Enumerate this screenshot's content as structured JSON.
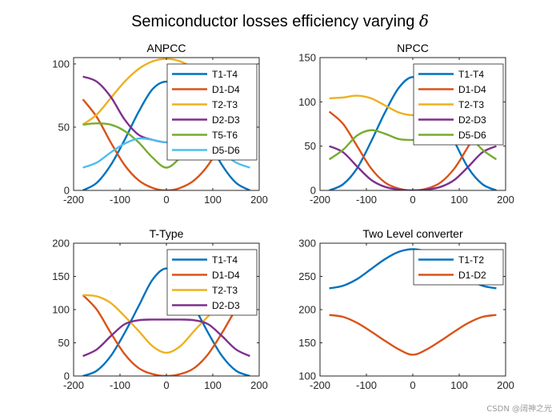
{
  "figure": {
    "title": "Semiconductor losses efficiency varying ",
    "title_symbol": "δ",
    "watermark": "CSDN @阔神之光"
  },
  "chart_data": [
    {
      "type": "line",
      "title": "ANPCC",
      "xlim": [
        -200,
        200
      ],
      "ylim": [
        0,
        105
      ],
      "xticks": [
        "-200",
        "-100",
        "0",
        "100",
        "200"
      ],
      "yticks": [
        "0",
        "50",
        "100"
      ],
      "yticks_values": [
        0,
        50,
        100
      ],
      "legend_position": "top-right",
      "x": [
        -180,
        -150,
        -120,
        -90,
        -60,
        -30,
        0,
        30,
        60,
        90,
        120,
        150,
        180
      ],
      "series": [
        {
          "name": "T1-T4",
          "color": "#0072BD",
          "values": [
            0,
            6,
            20,
            40,
            62,
            80,
            86,
            80,
            62,
            40,
            20,
            6,
            0
          ]
        },
        {
          "name": "D1-D4",
          "color": "#D95319",
          "values": [
            72,
            58,
            38,
            20,
            8,
            2,
            0,
            2,
            8,
            20,
            38,
            58,
            72
          ]
        },
        {
          "name": "T2-T3",
          "color": "#EDB120",
          "values": [
            52,
            60,
            73,
            86,
            96,
            102,
            104,
            102,
            96,
            86,
            73,
            60,
            52
          ]
        },
        {
          "name": "D2-D3",
          "color": "#7E2F8E",
          "values": [
            90,
            86,
            74,
            56,
            44,
            40,
            38,
            40,
            44,
            56,
            74,
            86,
            90
          ]
        },
        {
          "name": "T5-T6",
          "color": "#77AC30",
          "values": [
            52,
            53,
            52,
            47,
            38,
            26,
            18,
            26,
            38,
            47,
            52,
            53,
            52
          ]
        },
        {
          "name": "D5-D6",
          "color": "#4DBEEE",
          "values": [
            18,
            22,
            30,
            37,
            41,
            40,
            38,
            40,
            41,
            37,
            30,
            22,
            18
          ]
        }
      ]
    },
    {
      "type": "line",
      "title": "NPCC",
      "xlim": [
        -200,
        200
      ],
      "ylim": [
        0,
        150
      ],
      "xticks": [
        "-200",
        "-100",
        "0",
        "100",
        "200"
      ],
      "yticks": [
        "0",
        "50",
        "100",
        "150"
      ],
      "yticks_values": [
        0,
        50,
        100,
        150
      ],
      "legend_position": "top-right",
      "x": [
        -180,
        -150,
        -120,
        -90,
        -60,
        -30,
        0,
        30,
        60,
        90,
        120,
        150,
        180
      ],
      "series": [
        {
          "name": "T1-T4",
          "color": "#0072BD",
          "values": [
            0,
            7,
            25,
            55,
            88,
            116,
            128,
            116,
            88,
            55,
            25,
            7,
            0
          ]
        },
        {
          "name": "D1-D4",
          "color": "#D95319",
          "values": [
            89,
            75,
            50,
            25,
            9,
            2,
            0,
            2,
            9,
            25,
            50,
            75,
            89
          ]
        },
        {
          "name": "T2-T3",
          "color": "#EDB120",
          "values": [
            104,
            105,
            107,
            104,
            96,
            88,
            85,
            88,
            96,
            104,
            107,
            105,
            104
          ]
        },
        {
          "name": "D2-D3",
          "color": "#7E2F8E",
          "values": [
            50,
            43,
            27,
            12,
            4,
            1,
            0,
            1,
            4,
            12,
            27,
            43,
            50
          ]
        },
        {
          "name": "D5-D6",
          "color": "#77AC30",
          "values": [
            35,
            46,
            62,
            68,
            64,
            58,
            57,
            58,
            64,
            68,
            62,
            46,
            35
          ]
        }
      ]
    },
    {
      "type": "line",
      "title": "T-Type",
      "xlim": [
        -200,
        200
      ],
      "ylim": [
        0,
        200
      ],
      "xticks": [
        "-200",
        "-100",
        "0",
        "100",
        "200"
      ],
      "yticks": [
        "0",
        "50",
        "100",
        "150",
        "200"
      ],
      "yticks_values": [
        0,
        50,
        100,
        150,
        200
      ],
      "legend_position": "top-right",
      "x": [
        -180,
        -150,
        -120,
        -90,
        -60,
        -30,
        0,
        30,
        60,
        90,
        120,
        150,
        180
      ],
      "series": [
        {
          "name": "T1-T4",
          "color": "#0072BD",
          "values": [
            0,
            8,
            30,
            65,
            105,
            145,
            162,
            145,
            105,
            65,
            30,
            8,
            0
          ]
        },
        {
          "name": "D1-D4",
          "color": "#D95319",
          "values": [
            122,
            100,
            65,
            33,
            12,
            3,
            0,
            3,
            12,
            33,
            65,
            100,
            122
          ]
        },
        {
          "name": "T2-T3",
          "color": "#EDB120",
          "values": [
            122,
            120,
            110,
            90,
            68,
            45,
            35,
            45,
            68,
            90,
            110,
            120,
            122
          ]
        },
        {
          "name": "D2-D3",
          "color": "#7E2F8E",
          "values": [
            30,
            40,
            60,
            78,
            84,
            85,
            85,
            85,
            84,
            78,
            60,
            40,
            30
          ]
        }
      ]
    },
    {
      "type": "line",
      "title": "Two Level converter",
      "xlim": [
        -200,
        200
      ],
      "ylim": [
        100,
        300
      ],
      "xticks": [
        "-200",
        "-100",
        "0",
        "100",
        "200"
      ],
      "yticks": [
        "100",
        "150",
        "200",
        "250",
        "300"
      ],
      "yticks_values": [
        100,
        150,
        200,
        250,
        300
      ],
      "legend_position": "top-right",
      "x": [
        -180,
        -150,
        -120,
        -90,
        -60,
        -30,
        0,
        30,
        60,
        90,
        120,
        150,
        180
      ],
      "series": [
        {
          "name": "T1-T2",
          "color": "#0072BD",
          "values": [
            232,
            236,
            246,
            261,
            276,
            287,
            291,
            287,
            276,
            261,
            246,
            236,
            232
          ]
        },
        {
          "name": "D1-D2",
          "color": "#D95319",
          "values": [
            192,
            189,
            180,
            167,
            153,
            140,
            132,
            140,
            153,
            167,
            180,
            189,
            192
          ]
        }
      ]
    }
  ]
}
